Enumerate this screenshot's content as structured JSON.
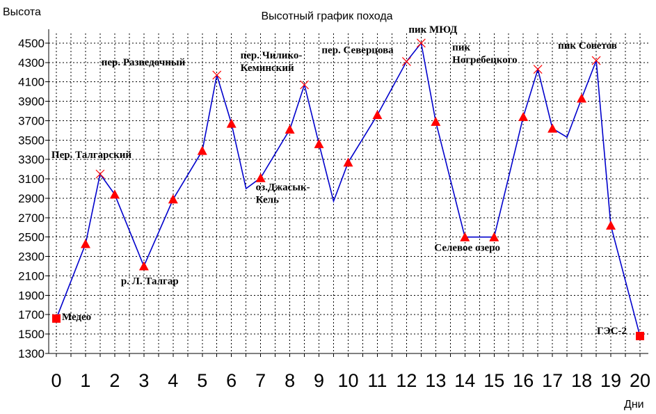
{
  "chart_data": {
    "type": "line",
    "title": "Высотный график похода",
    "ylabel": "Высота",
    "xlabel": "Дни",
    "xlim": [
      0,
      20
    ],
    "ylim": [
      1300,
      4600
    ],
    "grid": true,
    "x_ticks": [
      0,
      1,
      2,
      3,
      4,
      5,
      6,
      7,
      8,
      9,
      10,
      11,
      12,
      13,
      14,
      15,
      16,
      17,
      18,
      19,
      20
    ],
    "y_ticks": [
      1300,
      1500,
      1700,
      1900,
      2100,
      2300,
      2500,
      2700,
      2900,
      3100,
      3300,
      3500,
      3700,
      3900,
      4100,
      4300,
      4500
    ],
    "colors": {
      "line": "#0000cc",
      "markers": "#ff0000",
      "grid": "#000000"
    },
    "points": [
      {
        "x": 0,
        "y": 1660,
        "marker": "square",
        "label": "Медео",
        "label_pos": "right"
      },
      {
        "x": 1,
        "y": 2430,
        "marker": "triangle",
        "label": ""
      },
      {
        "x": 1.5,
        "y": 3150,
        "marker": "cross",
        "label": "Пер. Талгарский",
        "label_pos": "above"
      },
      {
        "x": 2,
        "y": 2940,
        "marker": "triangle",
        "label": ""
      },
      {
        "x": 3,
        "y": 2200,
        "marker": "triangle",
        "label": "р. Л. Талгар",
        "label_pos": "below"
      },
      {
        "x": 4,
        "y": 2890,
        "marker": "triangle",
        "label": ""
      },
      {
        "x": 5,
        "y": 3390,
        "marker": "triangle",
        "label": ""
      },
      {
        "x": 5.5,
        "y": 4170,
        "marker": "cross",
        "label": "пер. Разведочный",
        "label_pos": "left"
      },
      {
        "x": 6,
        "y": 3670,
        "marker": "triangle",
        "label": ""
      },
      {
        "x": 6.5,
        "y": 3000,
        "marker": "none",
        "label": ""
      },
      {
        "x": 7,
        "y": 3110,
        "marker": "triangle",
        "label": "оз.Джасык-Кель",
        "label_pos": "below"
      },
      {
        "x": 8,
        "y": 3610,
        "marker": "triangle",
        "label": ""
      },
      {
        "x": 8.5,
        "y": 4070,
        "marker": "cross",
        "label": "пер. Чилико-Кеминский",
        "label_pos": "above"
      },
      {
        "x": 9,
        "y": 3460,
        "marker": "triangle",
        "label": ""
      },
      {
        "x": 9.5,
        "y": 2870,
        "marker": "none",
        "label": ""
      },
      {
        "x": 10,
        "y": 3270,
        "marker": "triangle",
        "label": ""
      },
      {
        "x": 11,
        "y": 3760,
        "marker": "triangle",
        "label": ""
      },
      {
        "x": 12,
        "y": 4310,
        "marker": "cross",
        "label": "пер. Северцова",
        "label_pos": "above-left"
      },
      {
        "x": 12.5,
        "y": 4500,
        "marker": "cross",
        "label": "пик МЮД",
        "label_pos": "above"
      },
      {
        "x": 13,
        "y": 3690,
        "marker": "triangle",
        "label": ""
      },
      {
        "x": 14,
        "y": 2500,
        "marker": "triangle",
        "label": "Селевое озеро",
        "label_pos": "below"
      },
      {
        "x": 15,
        "y": 2500,
        "marker": "triangle",
        "label": ""
      },
      {
        "x": 16,
        "y": 3740,
        "marker": "triangle",
        "label": ""
      },
      {
        "x": 16.5,
        "y": 4230,
        "marker": "cross",
        "label": "пик Ногребецкого",
        "label_pos": "above-left"
      },
      {
        "x": 17,
        "y": 3620,
        "marker": "triangle",
        "label": ""
      },
      {
        "x": 17.5,
        "y": 3530,
        "marker": "none",
        "label": ""
      },
      {
        "x": 18,
        "y": 3930,
        "marker": "triangle",
        "label": ""
      },
      {
        "x": 18.5,
        "y": 4320,
        "marker": "cross",
        "label": "пик Советов",
        "label_pos": "above"
      },
      {
        "x": 19,
        "y": 2620,
        "marker": "triangle",
        "label": ""
      },
      {
        "x": 20,
        "y": 1480,
        "marker": "square",
        "label": "ГЭС-2",
        "label_pos": "left"
      }
    ]
  }
}
